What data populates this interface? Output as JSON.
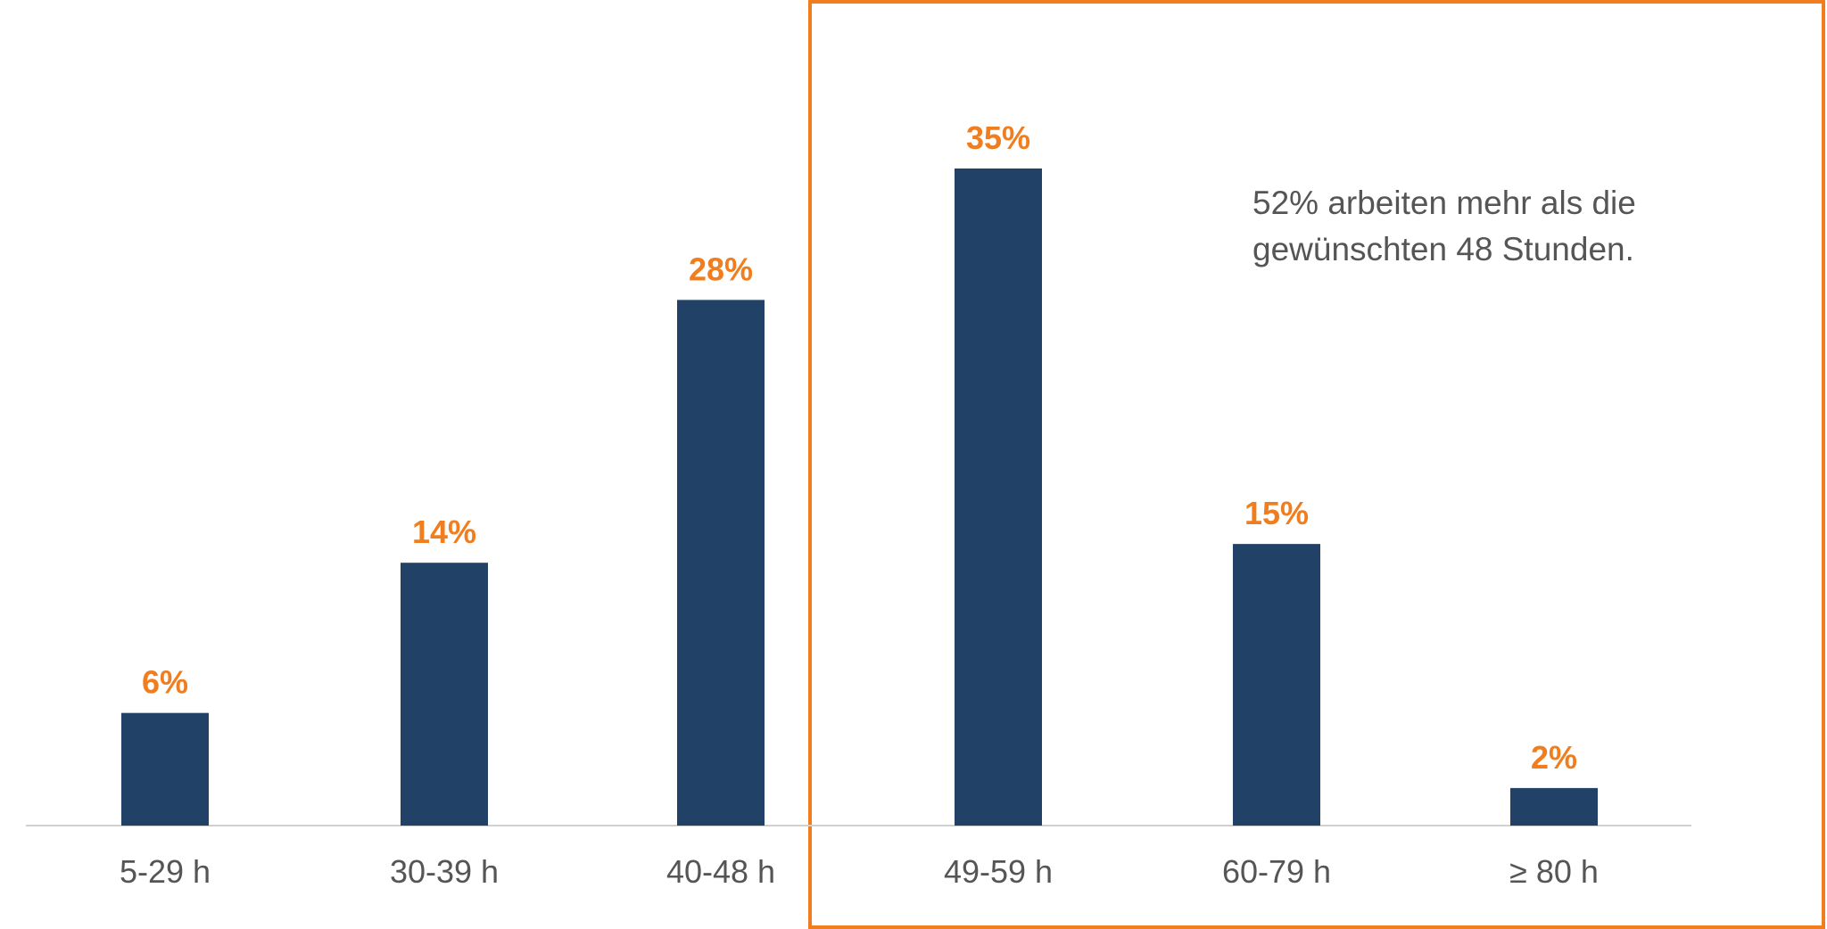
{
  "chart_data": {
    "type": "bar",
    "categories": [
      "5-29 h",
      "30-39 h",
      "40-48 h",
      "49-59 h",
      "60-79 h",
      "≥ 80 h"
    ],
    "values": [
      6,
      14,
      28,
      35,
      15,
      2
    ],
    "data_labels": [
      "6%",
      "14%",
      "28%",
      "35%",
      "15%",
      "2%"
    ],
    "unit": "%",
    "ylim": [
      0,
      35
    ],
    "grid": false,
    "highlight_box_categories": [
      "49-59 h",
      "60-79 h",
      "≥ 80 h"
    ],
    "annotation": [
      "52% arbeiten mehr als die",
      "gewünschten 48 Stunden."
    ],
    "colors": {
      "bar": "#214266",
      "label": "#F07E1E",
      "highlight": "#F07E1E",
      "axis_text": "#555555"
    }
  }
}
